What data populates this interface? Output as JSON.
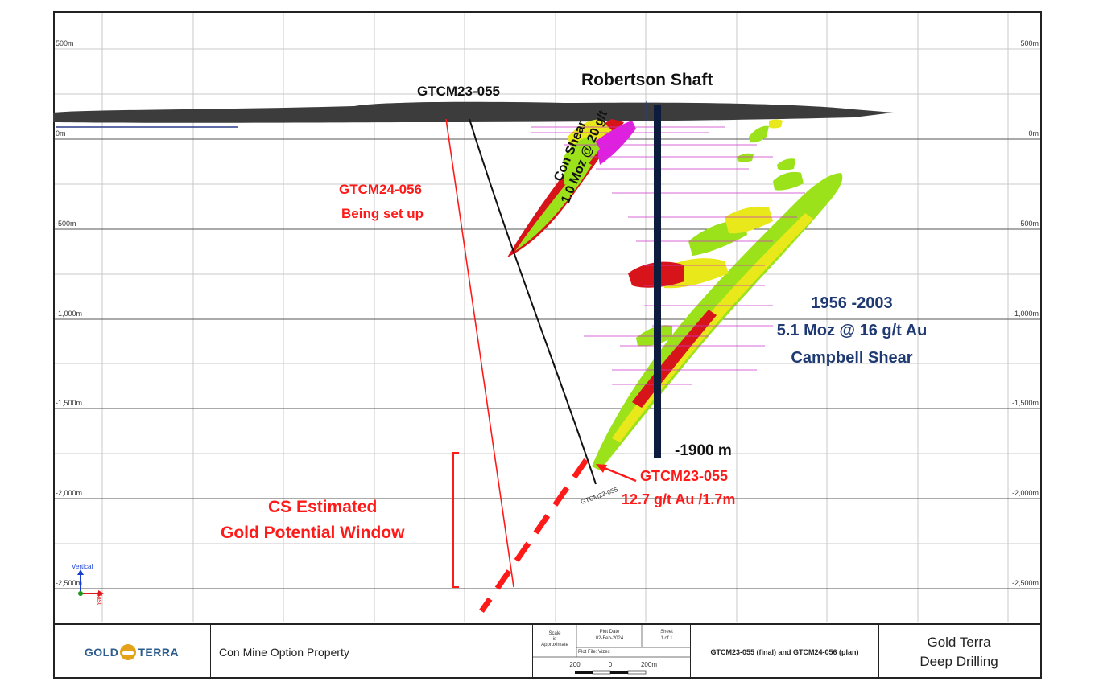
{
  "elevations": [
    "500m",
    "0m",
    "-500m",
    "-1,000m",
    "-1,500m",
    "-2,000m",
    "-2,500m"
  ],
  "annotations": {
    "robertson_shaft": "Robertson Shaft",
    "hole_055_top": "GTCM23-055",
    "hole_056_name": "GTCM24-056",
    "hole_056_status": "Being set up",
    "con_shear_line1": "Con Shear",
    "con_shear_line2": "1.0 Moz @ 20 g/t",
    "campbell_years": "1956 -2003",
    "campbell_resource": "5.1 Moz @ 16 g/t Au",
    "campbell_name": "Campbell Shear",
    "shaft_depth": "-1900 m",
    "intercept_hole": "GTCM23-055",
    "intercept_grade": "12.7 g/t Au /1.7m",
    "hole_055_small": "GTCM23-055",
    "cs_line1": "CS Estimated",
    "cs_line2": "Gold Potential Window"
  },
  "axis_legend": {
    "vertical": "Vertical",
    "east": "East"
  },
  "title_block": {
    "logo_left": "GOLD",
    "logo_right": "TERRA",
    "property": "Con Mine Option Property",
    "scale_label": "Scale\nis\nApproximate",
    "plot_date_label": "Plot Date",
    "plot_date": "02-Feb-2024",
    "sheet_label": "Sheet",
    "sheet": "1 of 1",
    "plot_file": "Plot File: Vizex",
    "scale_bar_left": "200",
    "scale_bar_mid": "0",
    "scale_bar_right": "200m",
    "drawing_title": "GTCM23-055 (final) and GTCM24-056 (plan)",
    "company_line1": "Gold Terra",
    "company_line2": "Deep Drilling"
  },
  "colors": {
    "red": "#ff1a1a",
    "navy": "#1f3a73",
    "ore_green": "#9be21a",
    "ore_yellow": "#e8e81a",
    "ore_red": "#d8141b",
    "ore_magenta": "#e020e0",
    "shaft": "#0d1b3d"
  }
}
